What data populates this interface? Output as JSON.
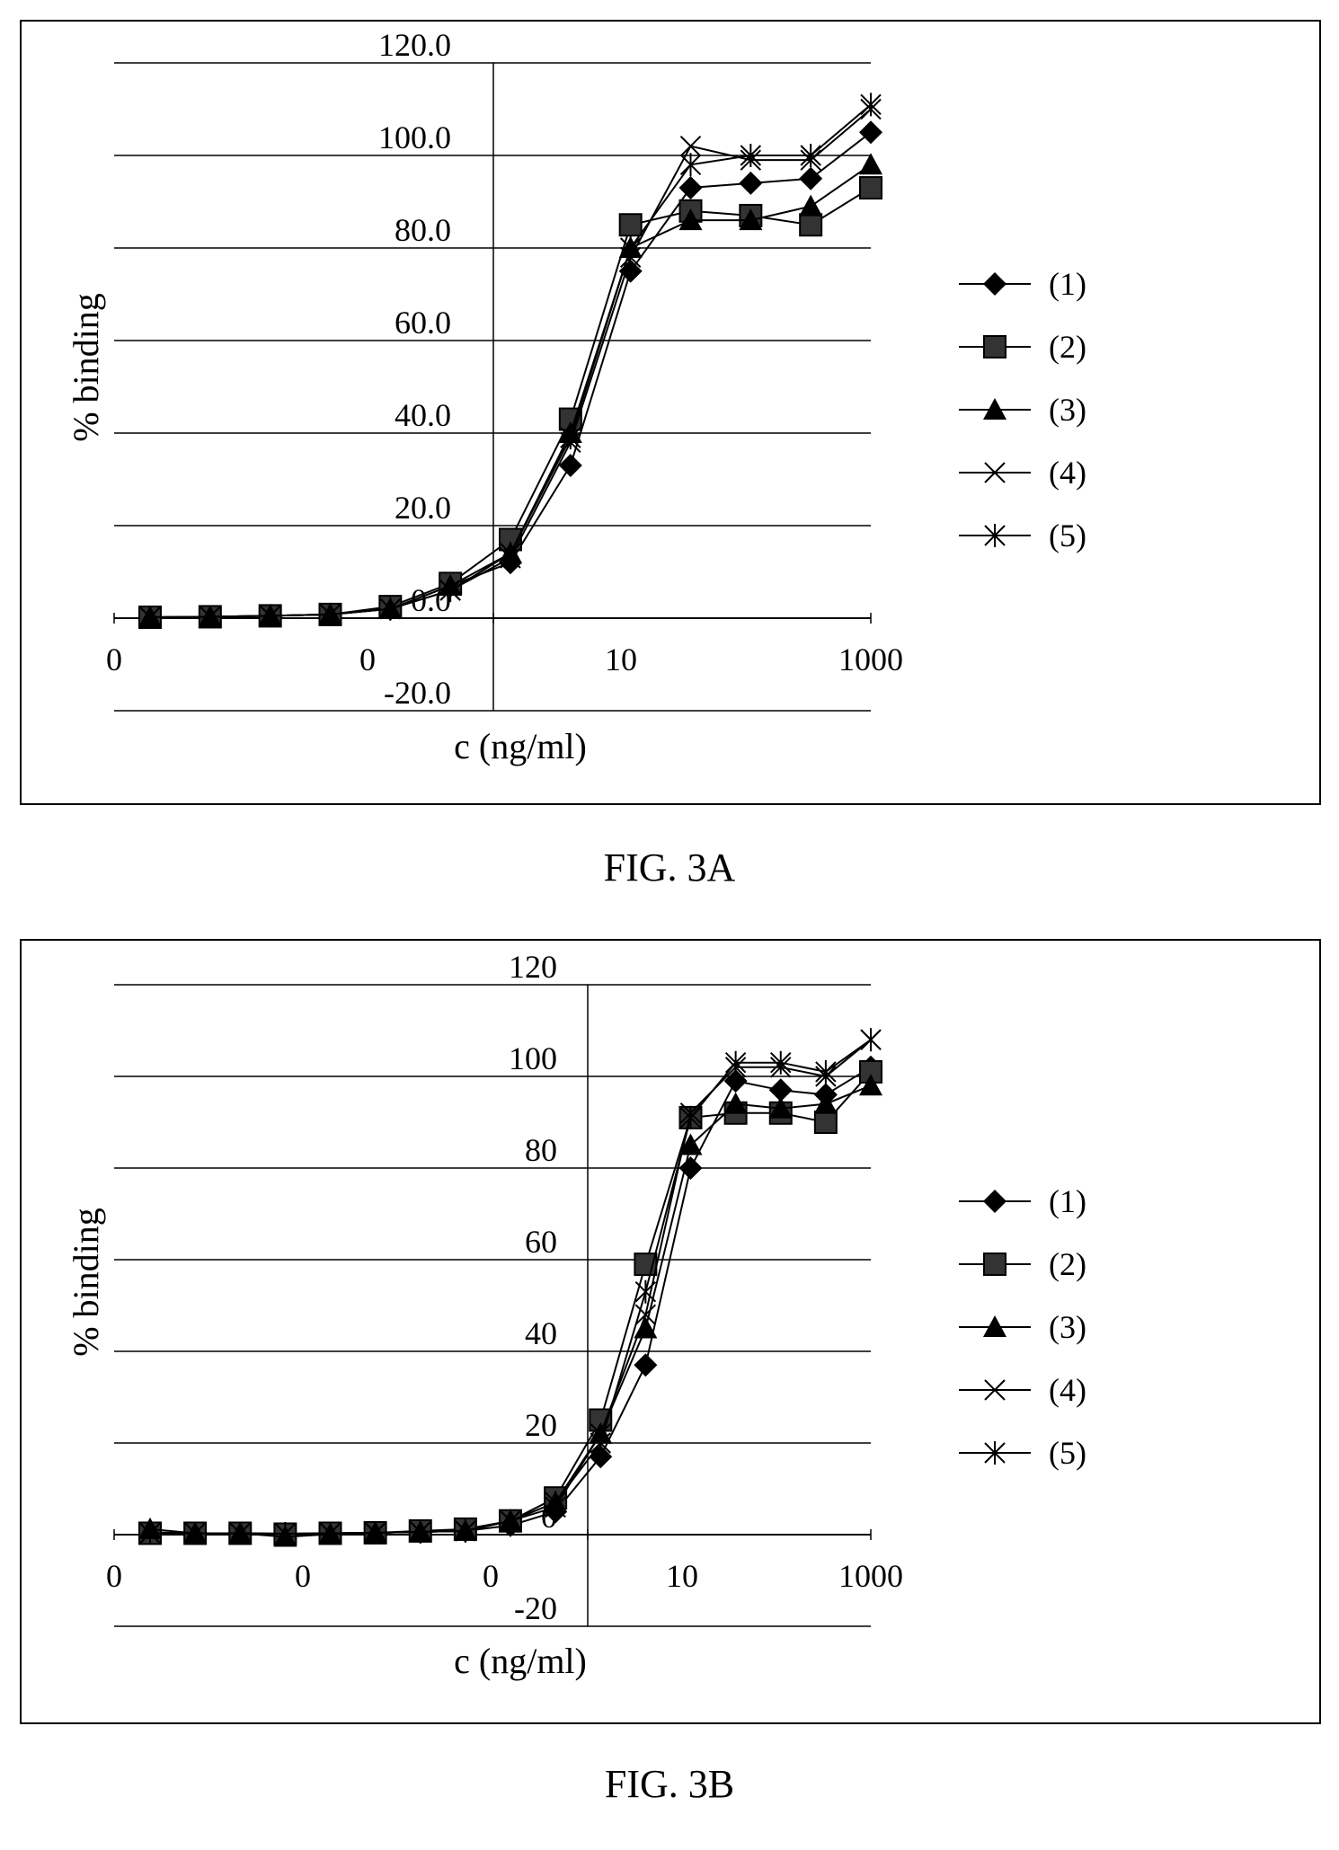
{
  "figures": [
    {
      "caption": "FIG. 3A",
      "chart_data": {
        "type": "line",
        "xlabel": "c (ng/ml)",
        "ylabel": "% binding",
        "y_tick_labels": [
          "120.0",
          "100.0",
          "80.0",
          "60.0",
          "40.0",
          "20.0",
          "0.0",
          "-20.0"
        ],
        "x_tick_labels": [
          "0",
          "0",
          "10",
          "1000"
        ],
        "x_axis_scale": "log",
        "ylim": [
          -20,
          120
        ],
        "grid": "horizontal",
        "legend_position": "right",
        "series": [
          {
            "name": "(1)",
            "marker": "diamond",
            "values": [
              0.2,
              0.3,
              0.5,
              0.8,
              2,
              7,
              12,
              33,
              75,
              93,
              94,
              95,
              105
            ]
          },
          {
            "name": "(2)",
            "marker": "square",
            "values": [
              0.2,
              0.3,
              0.5,
              0.8,
              2.5,
              7.5,
              17,
              43,
              85,
              88,
              87,
              85,
              93
            ]
          },
          {
            "name": "(3)",
            "marker": "triangle",
            "values": [
              0.2,
              0.3,
              0.5,
              0.8,
              2,
              7,
              14,
              40,
              80,
              86,
              86,
              89,
              98
            ]
          },
          {
            "name": "(4)",
            "marker": "x",
            "values": [
              0.2,
              0.3,
              0.5,
              0.8,
              2,
              6,
              13,
              38,
              78,
              102,
              99,
              99,
              110
            ]
          },
          {
            "name": "(5)",
            "marker": "double-x",
            "values": [
              0.2,
              0.3,
              0.5,
              0.8,
              2,
              6,
              14,
              39,
              80,
              98,
              100,
              100,
              111
            ]
          }
        ]
      }
    },
    {
      "caption": "FIG. 3B",
      "chart_data": {
        "type": "line",
        "xlabel": "c (ng/ml)",
        "ylabel": "% binding",
        "y_tick_labels": [
          "120",
          "100",
          "80",
          "60",
          "40",
          "20",
          "0",
          "-20"
        ],
        "x_tick_labels": [
          "0",
          "0",
          "0",
          "10",
          "1000"
        ],
        "x_axis_scale": "log",
        "ylim": [
          -20,
          120
        ],
        "grid": "horizontal",
        "legend_position": "right",
        "series": [
          {
            "name": "(1)",
            "marker": "diamond",
            "values": [
              0.5,
              0.3,
              0.3,
              0.2,
              0.3,
              0.4,
              0.6,
              0.8,
              2,
              5,
              17,
              37,
              80,
              99,
              97,
              96,
              102
            ]
          },
          {
            "name": "(2)",
            "marker": "square",
            "values": [
              0.3,
              0.3,
              0.3,
              0.1,
              0.3,
              0.4,
              0.8,
              1.2,
              3,
              8,
              25,
              59,
              91,
              92,
              92,
              90,
              101
            ]
          },
          {
            "name": "(3)",
            "marker": "triangle",
            "values": [
              1.2,
              0.3,
              0.3,
              -0.5,
              0.1,
              0.4,
              0.6,
              0.8,
              3,
              7,
              22,
              45,
              85,
              94,
              93,
              94,
              98
            ]
          },
          {
            "name": "(4)",
            "marker": "x",
            "values": [
              0.3,
              0.3,
              0.3,
              0.2,
              0.3,
              0.4,
              0.6,
              0.8,
              3,
              6,
              22,
              48,
              92,
              102,
              102,
              100,
              108
            ]
          },
          {
            "name": "(5)",
            "marker": "double-x",
            "values": [
              0.3,
              0.3,
              0.3,
              0.2,
              0.3,
              0.4,
              0.6,
              0.8,
              3,
              7,
              20,
              53,
              91,
              103,
              103,
              101,
              108
            ]
          }
        ]
      }
    }
  ]
}
